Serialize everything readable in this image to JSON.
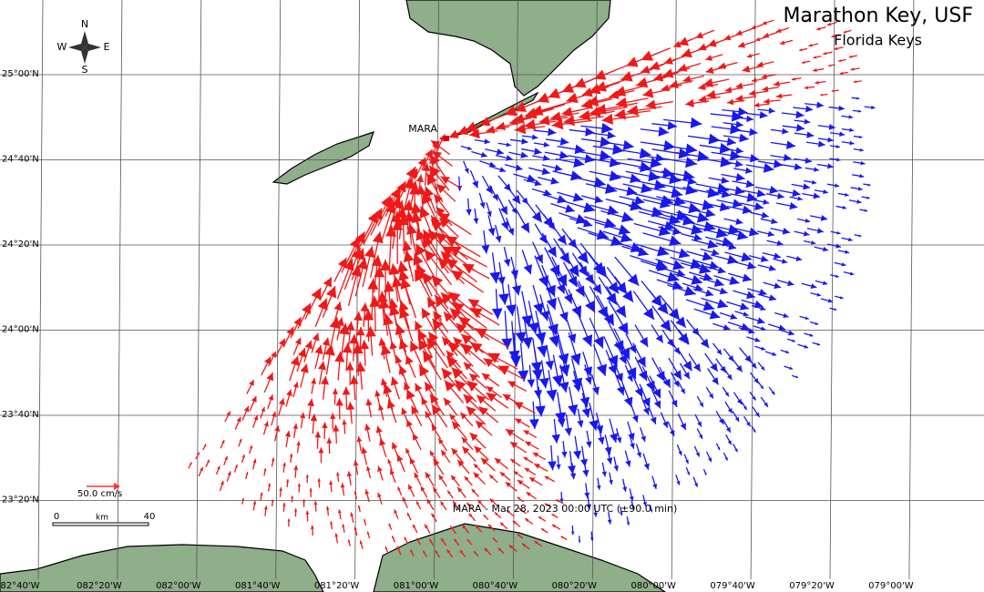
{
  "header": {
    "title": "Marathon Key, USF",
    "subtitle": "Florida Keys"
  },
  "station": "MARA",
  "compass": {
    "north": "N",
    "east": "E",
    "south": "S",
    "west": "W"
  },
  "lat_labels": [
    "25°00'N",
    "24°40'N",
    "24°20'N",
    "24°00'N",
    "23°40'N",
    "23°20'N"
  ],
  "lon_labels": [
    "82°40'W",
    "082°20'W",
    "082°00'W",
    "081°40'W",
    "081°20'W",
    "081°00'W",
    "080°40'W",
    "080°20'W",
    "080°00'W",
    "079°40'W",
    "079°20'W",
    "079°00'W"
  ],
  "scale": {
    "vector": "50.0 cm/s",
    "start": "0",
    "unit": "km",
    "end": "40"
  },
  "footer": "MARA - Mar 28, 2023 00:00 UTC (±90.0 min)"
}
